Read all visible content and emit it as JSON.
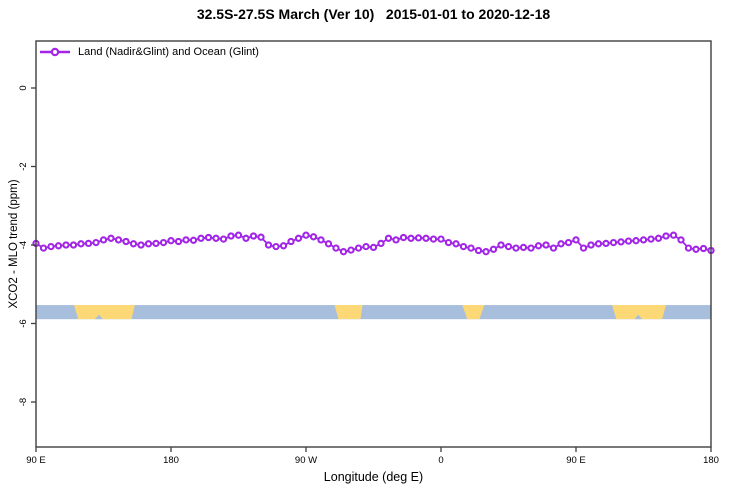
{
  "chart_data": {
    "type": "line",
    "title": "32.5S-27.5S March (Ver 10)   2015-01-01 to 2020-12-18",
    "xlabel": "Longitude (deg E)",
    "ylabel": "XCO2 - MLO trend (ppm)",
    "legend": {
      "label": "Land (Nadir&Glint) and Ocean (Glint)",
      "position": "top-left"
    },
    "grid": false,
    "series_color": "#A225E8",
    "marker": "open-circle",
    "x_axis": {
      "range_deg": [
        90,
        540
      ],
      "ticks": [
        {
          "deg": 90,
          "label": "90 E"
        },
        {
          "deg": 180,
          "label": "180"
        },
        {
          "deg": 270,
          "label": "90 W"
        },
        {
          "deg": 360,
          "label": "0"
        },
        {
          "deg": 450,
          "label": "90 E"
        },
        {
          "deg": 540,
          "label": "180"
        }
      ]
    },
    "y_axis": {
      "range": [
        -9.15,
        1.2
      ],
      "ticks": [
        {
          "v": 0,
          "label": "0"
        },
        {
          "v": -2,
          "label": "-2"
        },
        {
          "v": -4,
          "label": "-4"
        },
        {
          "v": -6,
          "label": "-6"
        },
        {
          "v": -8,
          "label": "-8"
        }
      ]
    },
    "x_start_deg": 90,
    "x_step_deg": 5,
    "values": [
      -3.96,
      -4.08,
      -4.04,
      -4.02,
      -4.0,
      -4.0,
      -3.97,
      -3.96,
      -3.94,
      -3.87,
      -3.83,
      -3.87,
      -3.91,
      -3.97,
      -4.0,
      -3.97,
      -3.96,
      -3.94,
      -3.89,
      -3.91,
      -3.87,
      -3.88,
      -3.83,
      -3.81,
      -3.83,
      -3.85,
      -3.77,
      -3.75,
      -3.83,
      -3.77,
      -3.8,
      -4.0,
      -4.04,
      -4.02,
      -3.91,
      -3.83,
      -3.75,
      -3.79,
      -3.87,
      -3.97,
      -4.08,
      -4.17,
      -4.13,
      -4.08,
      -4.04,
      -4.06,
      -3.96,
      -3.83,
      -3.87,
      -3.81,
      -3.83,
      -3.82,
      -3.83,
      -3.85,
      -3.85,
      -3.94,
      -3.97,
      -4.04,
      -4.08,
      -4.14,
      -4.17,
      -4.11,
      -4.0,
      -4.04,
      -4.08,
      -4.06,
      -4.08,
      -4.02,
      -4.0,
      -4.08,
      -3.97,
      -3.94,
      -3.87,
      -4.08,
      -4.0,
      -3.97,
      -3.96,
      -3.94,
      -3.92,
      -3.9,
      -3.89,
      -3.87,
      -3.85,
      -3.83,
      -3.77,
      -3.75,
      -3.87,
      -4.08,
      -4.11,
      -4.09,
      -4.14
    ],
    "land_ocean_band": {
      "description": "land (yellow) vs ocean (blue) indicator strip along latitude band",
      "y_range": [
        -5.53,
        -5.89
      ],
      "ocean_color": "#A8BEDD",
      "land_color": "#FCD876",
      "land_segments_deg": [
        {
          "name": "australia",
          "top": [
            115.3,
            155.9
          ],
          "bottom": [
            118.2,
            153.7
          ],
          "notch": [
            129.3,
            134.6
          ]
        },
        {
          "name": "south-america",
          "top": [
            289.0,
            307.7
          ],
          "bottom": [
            291.7,
            306.3
          ]
        },
        {
          "name": "africa",
          "top": [
            374.2,
            388.9
          ],
          "bottom": [
            377.5,
            385.6
          ]
        },
        {
          "name": "australia-repeat",
          "top": [
            474.1,
            510.0
          ],
          "bottom": [
            476.8,
            507.4
          ],
          "notch": [
            489.0,
            494.0
          ]
        }
      ]
    },
    "frame_color": "#3F3F3F"
  }
}
